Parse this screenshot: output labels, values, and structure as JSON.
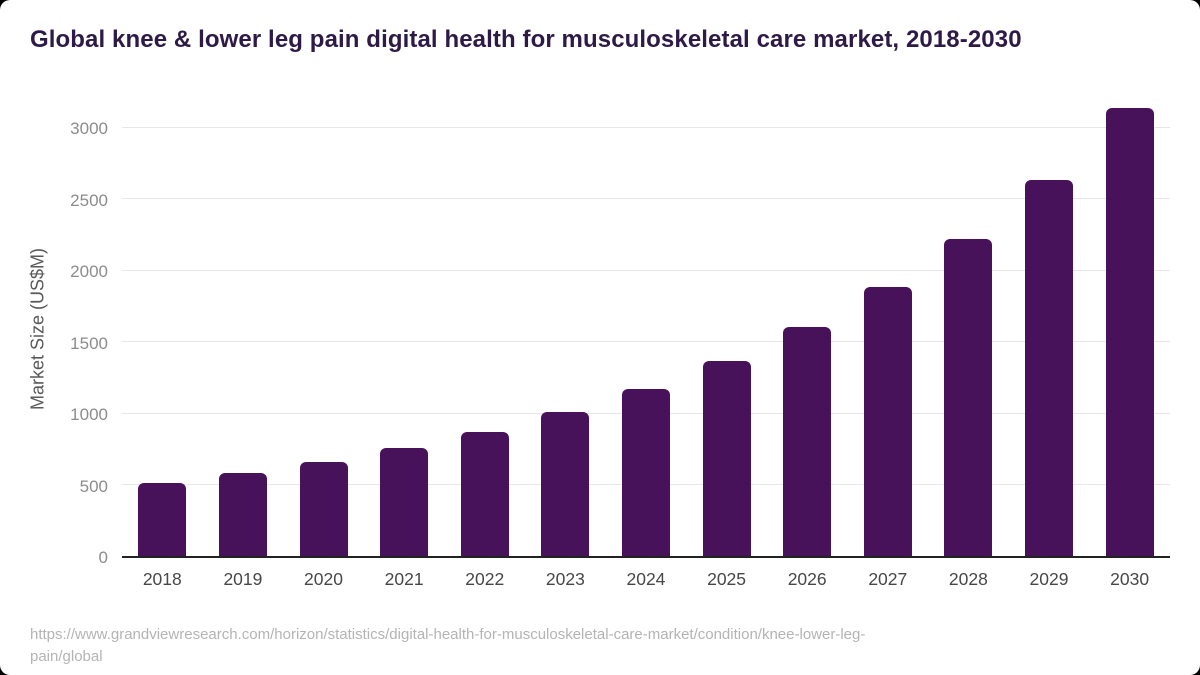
{
  "page": {
    "title": "Global knee & lower leg pain digital health for musculoskeletal care market, 2018-2030",
    "source_url": "https://www.grandviewresearch.com/horizon/statistics/digital-health-for-musculoskeletal-care-market/condition/knee-lower-leg-pain/global"
  },
  "colors": {
    "page_bg": "#000000",
    "card_bg": "#FFFFFF",
    "title": "#2E1A47",
    "bar": "#48125A",
    "gridline": "#E7E7E7",
    "axis_line": "#222222",
    "y_axis_title": "#595959",
    "y_tick": "#8C8C8C",
    "x_tick": "#474747",
    "source": "#B4B4B4"
  },
  "chart_data": {
    "type": "bar",
    "title": "Global knee & lower leg pain digital health for musculoskeletal care market, 2018-2030",
    "categories": [
      "2018",
      "2019",
      "2020",
      "2021",
      "2022",
      "2023",
      "2024",
      "2025",
      "2026",
      "2027",
      "2028",
      "2029",
      "2030"
    ],
    "values": [
      510,
      580,
      660,
      755,
      865,
      1005,
      1170,
      1365,
      1600,
      1880,
      2215,
      2630,
      3135
    ],
    "xlabel": "",
    "ylabel": "Market Size (US$M)",
    "ylim": [
      0,
      3200
    ],
    "yticks": [
      0,
      500,
      1000,
      1500,
      2000,
      2500,
      3000
    ],
    "grid": "horizontal",
    "legend": false,
    "bar_color": "#48125A"
  }
}
